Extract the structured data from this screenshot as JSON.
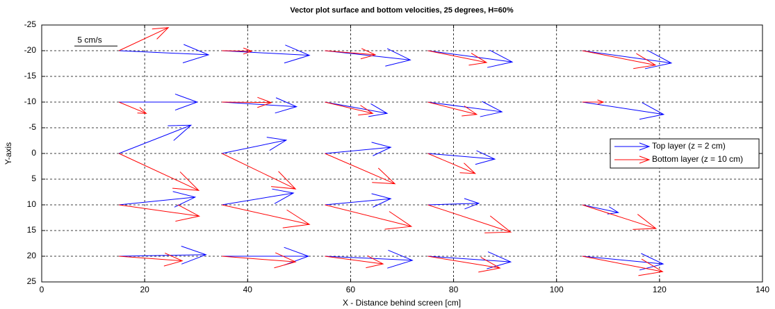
{
  "chart_data": {
    "type": "quiver",
    "title": "Vector plot surface and bottom velocities, 25 degrees, H=60%",
    "x_label": "X - Distance behind screen [cm]",
    "y_label": "Y-axis",
    "xlim": [
      0,
      140
    ],
    "ylim": [
      -25,
      25
    ],
    "y_reversed": true,
    "xticks": [
      0,
      20,
      40,
      60,
      80,
      100,
      120,
      140
    ],
    "yticks": [
      -25,
      -20,
      -15,
      -10,
      -5,
      0,
      5,
      10,
      15,
      20,
      25
    ],
    "grid": true,
    "legend_position": "east",
    "annotation": {
      "text": "5 cm/s",
      "x": 5,
      "y": -22
    },
    "series": [
      {
        "name": "Top layer (z = 2 cm)",
        "color": "#0000ff",
        "x": [
          15,
          35,
          55,
          75,
          105,
          15,
          35,
          55,
          75,
          105,
          15,
          35,
          55,
          75,
          15,
          35,
          55,
          75,
          105,
          15,
          35,
          55,
          75,
          105
        ],
        "y": [
          -20,
          -20,
          -20,
          -20,
          -20,
          -10,
          -10,
          -10,
          -10,
          -10,
          0,
          0,
          0,
          0,
          10,
          10,
          10,
          10,
          10,
          20,
          20,
          20,
          20,
          20
        ],
        "u": [
          17.4,
          17,
          16.6,
          16.4,
          17.3,
          15.2,
          14.5,
          12.1,
          14.4,
          15.8,
          14,
          12.5,
          12.8,
          13,
          14.8,
          13.9,
          12.8,
          9.9,
          7,
          16.9,
          16.8,
          17,
          16.1,
          15.7
        ],
        "v": [
          0.8,
          0.9,
          1.8,
          2.2,
          2.4,
          0,
          0.9,
          2.2,
          1.9,
          2.4,
          -5.5,
          -2.6,
          -1.2,
          1.1,
          -1.5,
          -2.3,
          -1.2,
          -0.3,
          1.5,
          -0.3,
          0,
          0.8,
          1.1,
          1.5
        ]
      },
      {
        "name": "Bottom layer (z = 10 cm)",
        "color": "#ff0000",
        "x": [
          15,
          35,
          55,
          75,
          105,
          15,
          35,
          55,
          75,
          105,
          15,
          35,
          55,
          75,
          15,
          35,
          55,
          75,
          105,
          15,
          35,
          55,
          75,
          105
        ],
        "y": [
          -20,
          -20,
          -20,
          -20,
          -20,
          -10,
          -10,
          -10,
          -10,
          -10,
          0,
          0,
          0,
          0,
          10,
          10,
          10,
          10,
          10,
          20,
          20,
          20,
          20,
          20
        ],
        "u": [
          9.6,
          5.8,
          9.8,
          11.4,
          14.2,
          5.3,
          9.6,
          9.3,
          9.5,
          4.1,
          15.5,
          14.3,
          13.6,
          9.2,
          15.6,
          17,
          16.8,
          16.1,
          14.3,
          12.3,
          14.3,
          11.3,
          14,
          15.6
        ],
        "v": [
          -4.5,
          0.1,
          0.8,
          2.3,
          2.8,
          2.2,
          0.1,
          2.2,
          2.4,
          0,
          7.2,
          6.9,
          5.9,
          3.9,
          2.2,
          3.8,
          4.2,
          5.3,
          4.6,
          0.9,
          1.1,
          1.5,
          2.3,
          3
        ]
      }
    ]
  }
}
